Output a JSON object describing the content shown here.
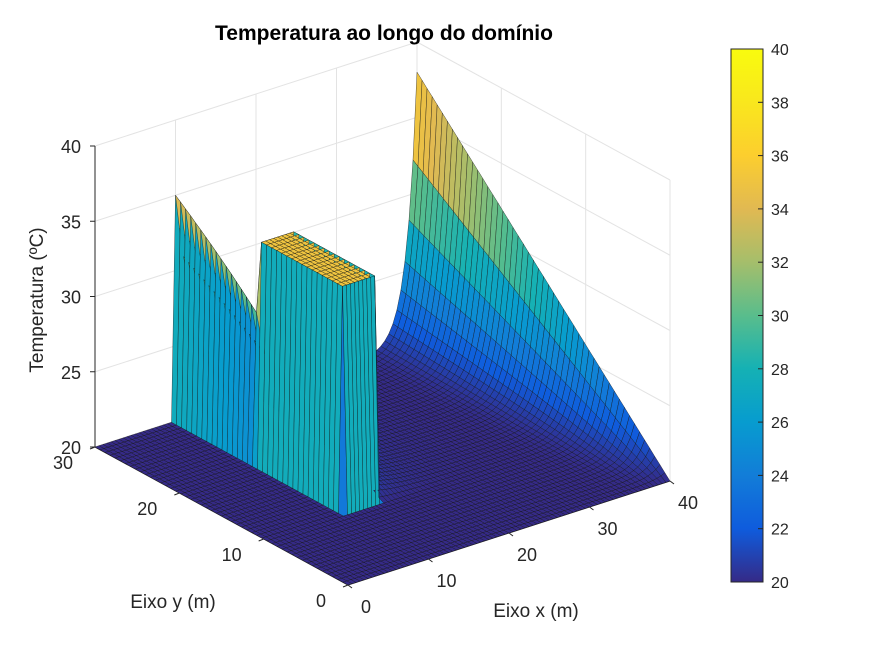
{
  "chart_data": {
    "type": "surface3d",
    "title": "Temperatura ao longo do domínio",
    "xlabel": "Eixo x (m)",
    "ylabel": "Eixo y (m)",
    "zlabel": "Temperatura (ºC)",
    "xlim": [
      0,
      40
    ],
    "ylim": [
      0,
      30
    ],
    "zlim": [
      20,
      40
    ],
    "xticks": [
      "0",
      "10",
      "20",
      "30",
      "40"
    ],
    "yticks": [
      "0",
      "10",
      "20",
      "30"
    ],
    "zticks": [
      "20",
      "25",
      "30",
      "35",
      "40"
    ],
    "grid": true,
    "colormap": "parula",
    "colorbar": {
      "limits": [
        20,
        40
      ],
      "ticks": [
        "20",
        "22",
        "24",
        "26",
        "28",
        "30",
        "32",
        "34",
        "36",
        "38",
        "40"
      ]
    },
    "surface_description": {
      "ambient_temperature": 20,
      "heated_block": {
        "x_range": [
          10,
          14
        ],
        "y_range": [
          10,
          20
        ],
        "temperature": 35
      },
      "right_boundary_temperature_at_y30": 38,
      "right_boundary_temperature_at_y0": 20
    }
  }
}
